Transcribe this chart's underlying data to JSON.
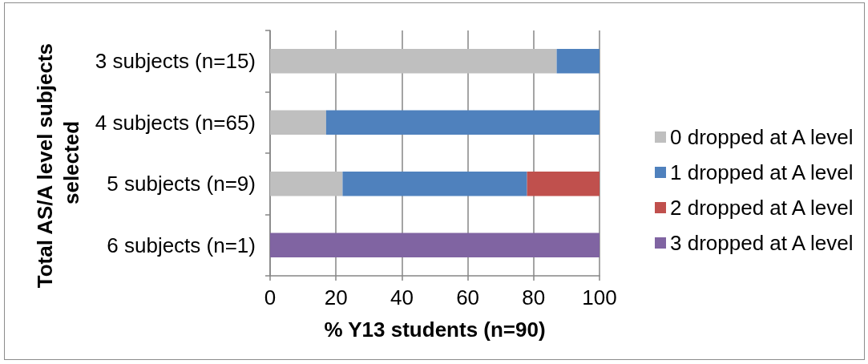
{
  "chart_data": {
    "type": "bar",
    "orientation": "horizontal",
    "stacked": true,
    "categories": [
      "3 subjects (n=15)",
      "4 subjects (n=65)",
      "5 subjects (n=9)",
      "6 subjects (n=1)"
    ],
    "series": [
      {
        "name": "0 dropped at A level",
        "color": "#bfbfbf",
        "values": [
          87,
          17,
          22,
          null
        ]
      },
      {
        "name": "1 dropped at A level",
        "color": "#4f81bd",
        "values": [
          13,
          83,
          56,
          null
        ]
      },
      {
        "name": "2 dropped at A level",
        "color": "#c0504d",
        "values": [
          null,
          null,
          22,
          null
        ]
      },
      {
        "name": "3 dropped at A level",
        "color": "#8064a2",
        "values": [
          null,
          null,
          null,
          100
        ]
      }
    ],
    "xlabel": "% Y13 students (n=90)",
    "ylabel": "Total AS/A level subjects selected",
    "xlim": [
      0,
      100
    ],
    "xticks": [
      0,
      20,
      40,
      60,
      80,
      100
    ],
    "grid": "x",
    "legend": "right"
  }
}
